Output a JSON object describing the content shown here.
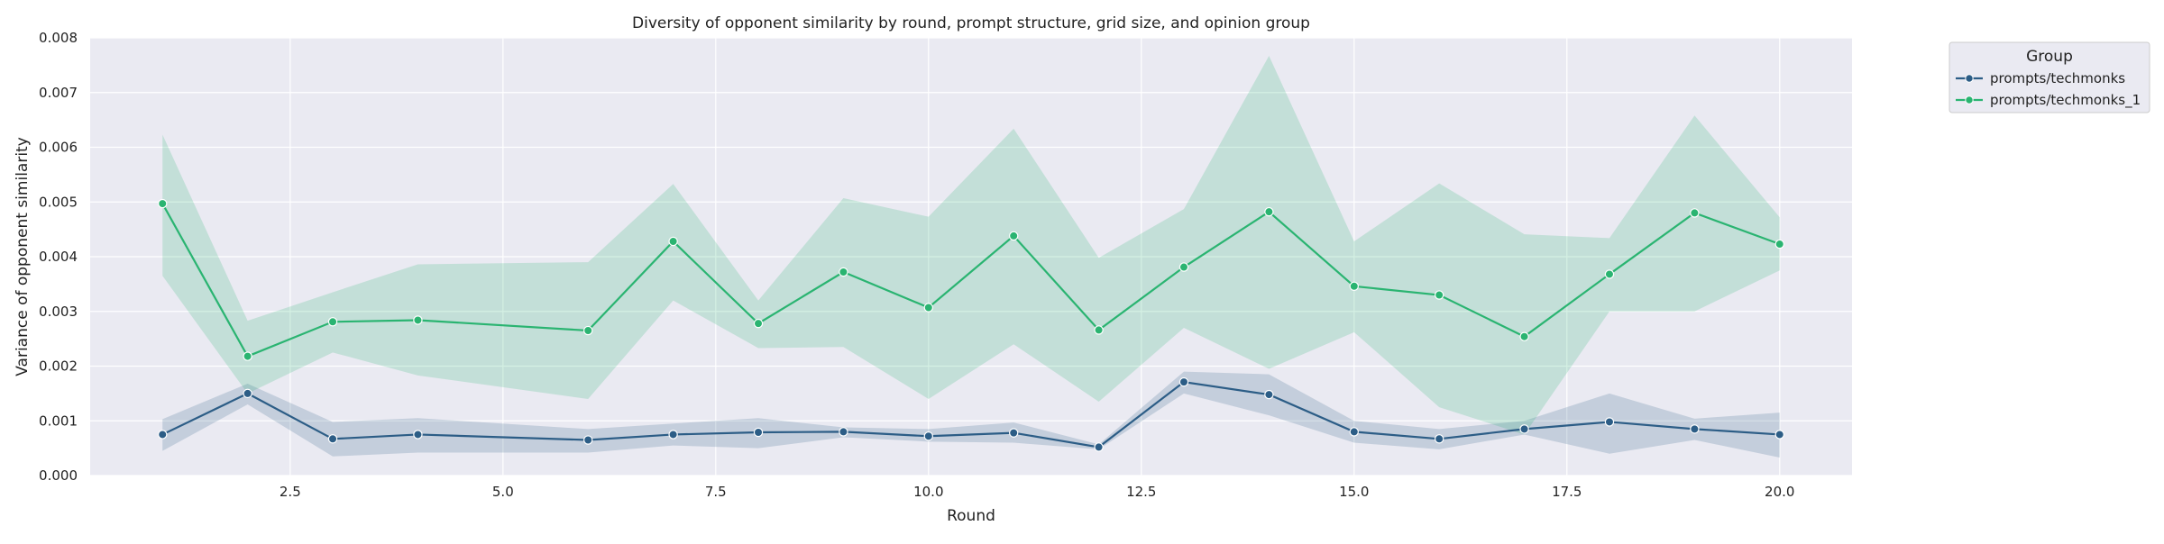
{
  "chart_data": {
    "type": "line",
    "title": "Diversity of opponent similarity by round, prompt structure, grid size, and opinion group",
    "xlabel": "Round",
    "ylabel": "Variance of opponent similarity",
    "xlim": [
      0.15,
      20.85
    ],
    "ylim": [
      0,
      0.008
    ],
    "xticks": [
      2.5,
      5.0,
      7.5,
      10.0,
      12.5,
      15.0,
      17.5,
      20.0
    ],
    "xtick_labels": [
      "2.5",
      "5.0",
      "7.5",
      "10.0",
      "12.5",
      "15.0",
      "17.5",
      "20.0"
    ],
    "yticks": [
      0,
      0.001,
      0.002,
      0.003,
      0.004,
      0.005,
      0.006,
      0.007,
      0.008
    ],
    "ytick_labels": [
      "0.000",
      "0.001",
      "0.002",
      "0.003",
      "0.004",
      "0.005",
      "0.006",
      "0.007",
      "0.008"
    ],
    "grid": true,
    "legend": {
      "title": "Group",
      "placement": "outside top-right"
    },
    "series": [
      {
        "name": "prompts/techmonks",
        "color": "#2c5d86",
        "x": [
          1,
          2,
          3,
          4,
          6,
          7,
          8,
          9,
          10,
          11,
          12,
          13,
          14,
          15,
          16,
          17,
          18,
          19,
          20
        ],
        "y": [
          0.00075,
          0.0015,
          0.00067,
          0.00075,
          0.00065,
          0.00075,
          0.00079,
          0.0008,
          0.00072,
          0.00078,
          0.00052,
          0.00171,
          0.00148,
          0.0008,
          0.00067,
          0.00085,
          0.00098,
          0.00085,
          0.00075
        ],
        "ci_low": [
          0.00045,
          0.0013,
          0.00035,
          0.00042,
          0.00042,
          0.00055,
          0.0005,
          0.0007,
          0.00062,
          0.0006,
          0.00048,
          0.0015,
          0.0011,
          0.0006,
          0.00048,
          0.00075,
          0.0004,
          0.00065,
          0.00033
        ],
        "ci_high": [
          0.00103,
          0.00168,
          0.00098,
          0.00105,
          0.00085,
          0.00095,
          0.00105,
          0.00088,
          0.00085,
          0.00097,
          0.00057,
          0.0019,
          0.00185,
          0.001,
          0.00085,
          0.001,
          0.0015,
          0.00104,
          0.00115
        ]
      },
      {
        "name": "prompts/techmonks_1",
        "color": "#2ab471",
        "x": [
          1,
          2,
          3,
          4,
          6,
          7,
          8,
          9,
          10,
          11,
          12,
          13,
          14,
          15,
          16,
          17,
          18,
          19,
          20
        ],
        "y": [
          0.00497,
          0.00218,
          0.00281,
          0.00284,
          0.00265,
          0.00428,
          0.00278,
          0.00372,
          0.00307,
          0.00438,
          0.00266,
          0.00381,
          0.00482,
          0.00346,
          0.0033,
          0.00254,
          0.00368,
          0.0048,
          0.00423
        ],
        "ci_low": [
          0.00365,
          0.0015,
          0.00225,
          0.00183,
          0.0014,
          0.0032,
          0.00233,
          0.00235,
          0.0014,
          0.0024,
          0.00135,
          0.0027,
          0.00195,
          0.00262,
          0.00125,
          0.00075,
          0.003,
          0.003,
          0.00375
        ],
        "ci_high": [
          0.00623,
          0.00283,
          0.00335,
          0.00386,
          0.0039,
          0.00533,
          0.0032,
          0.00507,
          0.00473,
          0.00634,
          0.00398,
          0.00487,
          0.00767,
          0.00428,
          0.00534,
          0.00441,
          0.00434,
          0.00658,
          0.00472
        ]
      }
    ]
  }
}
